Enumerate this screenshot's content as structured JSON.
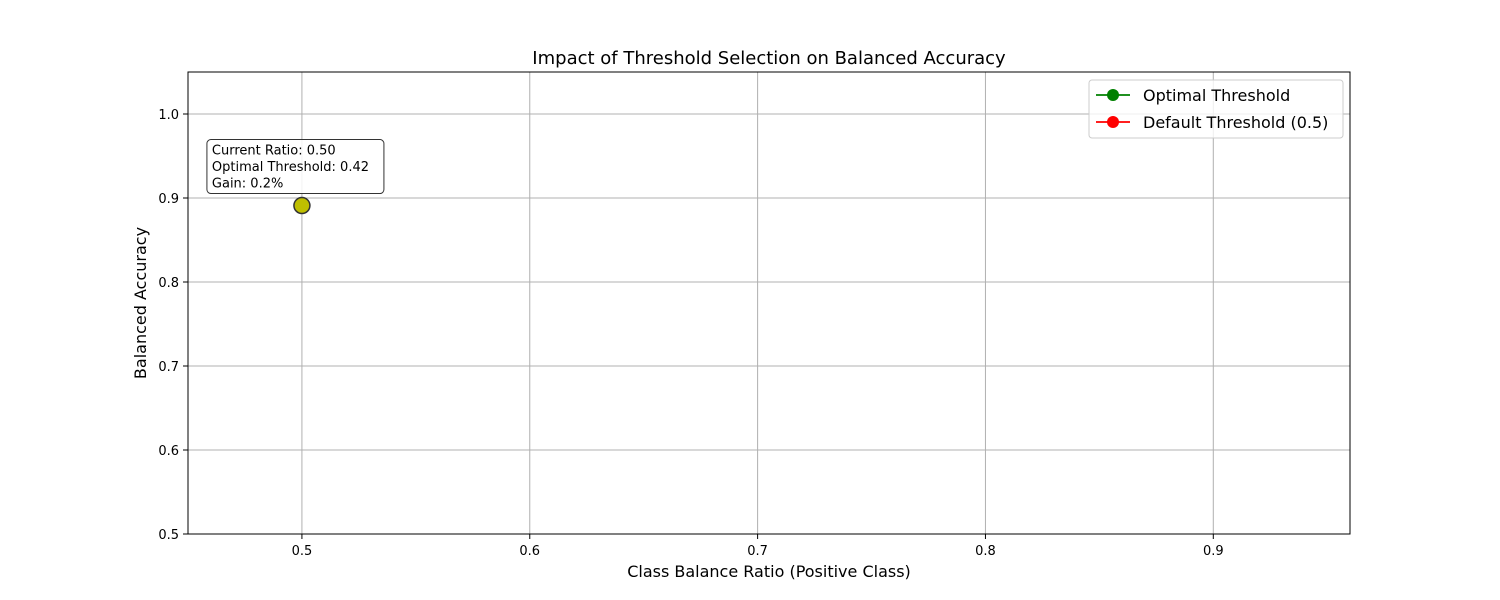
{
  "chart_data": {
    "type": "scatter",
    "title": "Impact of Threshold Selection on Balanced Accuracy",
    "xlabel": "Class Balance Ratio (Positive Class)",
    "ylabel": "Balanced Accuracy",
    "xlim": [
      0.45,
      0.96
    ],
    "ylim": [
      0.5,
      1.05
    ],
    "xticks": [
      "0.5",
      "0.6",
      "0.7",
      "0.8",
      "0.9"
    ],
    "yticks": [
      "0.5",
      "0.6",
      "0.7",
      "0.8",
      "0.9",
      "1.0"
    ],
    "grid": true,
    "legend_position": "top-right",
    "series": [
      {
        "name": "Optimal Threshold",
        "color": "#008000",
        "x": [],
        "y": []
      },
      {
        "name": "Default Threshold (0.5)",
        "color": "#ff0000",
        "x": [],
        "y": []
      }
    ],
    "highlight": {
      "x": 0.5,
      "y": 0.891,
      "color": "#bfbf00"
    },
    "annotation": {
      "lines": [
        "Current Ratio: 0.50",
        "Optimal Threshold: 0.42",
        "Gain: 0.2%"
      ]
    }
  }
}
